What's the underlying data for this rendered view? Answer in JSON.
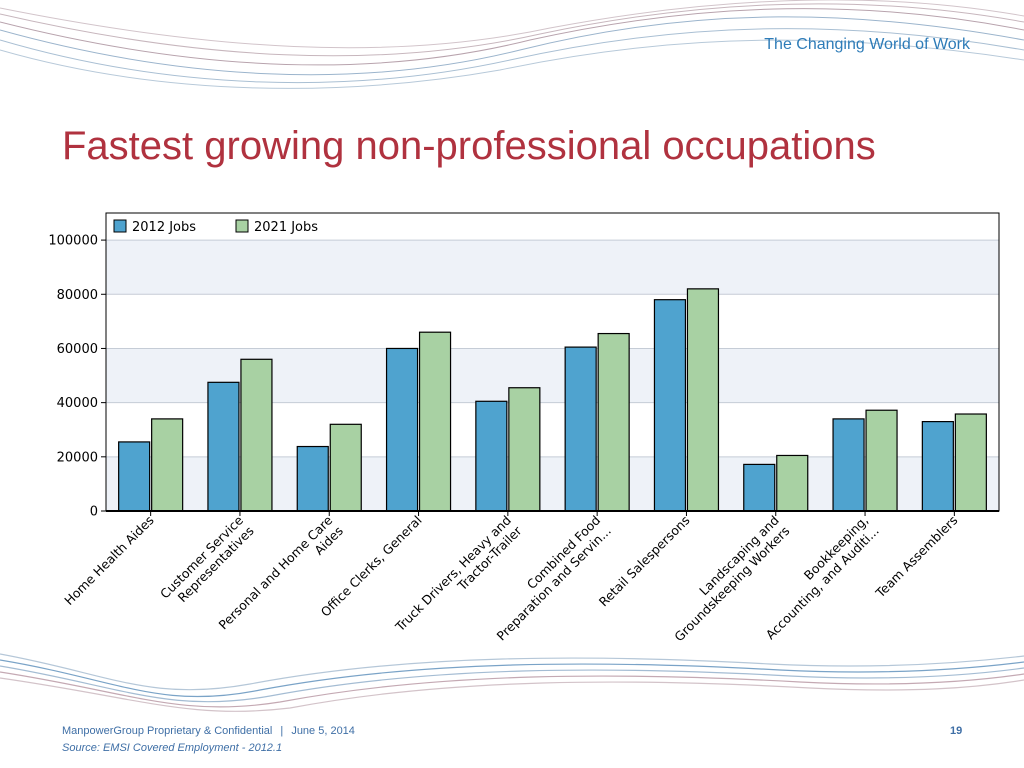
{
  "header": {
    "tagline": "The Changing World of Work"
  },
  "title": "Fastest growing non-professional occupations",
  "footer": {
    "company": "ManpowerGroup Proprietary & Confidential",
    "separator": "|",
    "date": "June 5, 2014",
    "page_number": "19",
    "source": "Source: EMSI Covered Employment - 2012.1"
  },
  "colors": {
    "title": "#b0323f",
    "accent_blue": "#2e7cb8",
    "series_2012": "#4fa3cf",
    "series_2021": "#a8d1a3"
  },
  "chart_data": {
    "type": "bar",
    "categories": [
      [
        "Home Health Aides"
      ],
      [
        "Customer Service",
        "Representatives"
      ],
      [
        "Personal and Home Care",
        "Aides"
      ],
      [
        "Office Clerks, General"
      ],
      [
        "Truck Drivers, Heavy and",
        "Tractor-Trailer"
      ],
      [
        "Combined Food",
        "Preparation and Servin..."
      ],
      [
        "Retail Salespersons"
      ],
      [
        "Landscaping and",
        "Groundskeeping Workers"
      ],
      [
        "Bookkeeping,",
        "Accounting, and Auditi..."
      ],
      [
        "Team Assemblers"
      ]
    ],
    "series": [
      {
        "name": "2012 Jobs",
        "values": [
          25500,
          47500,
          23800,
          60000,
          40500,
          60500,
          78000,
          17200,
          34000,
          33000
        ]
      },
      {
        "name": "2021 Jobs",
        "values": [
          34000,
          56000,
          32000,
          66000,
          45500,
          65500,
          82000,
          20500,
          37200,
          35800
        ]
      }
    ],
    "yticks": [
      0,
      20000,
      40000,
      60000,
      80000,
      100000
    ],
    "ylim": [
      0,
      110000
    ],
    "legend": "top-left",
    "grid": true
  }
}
